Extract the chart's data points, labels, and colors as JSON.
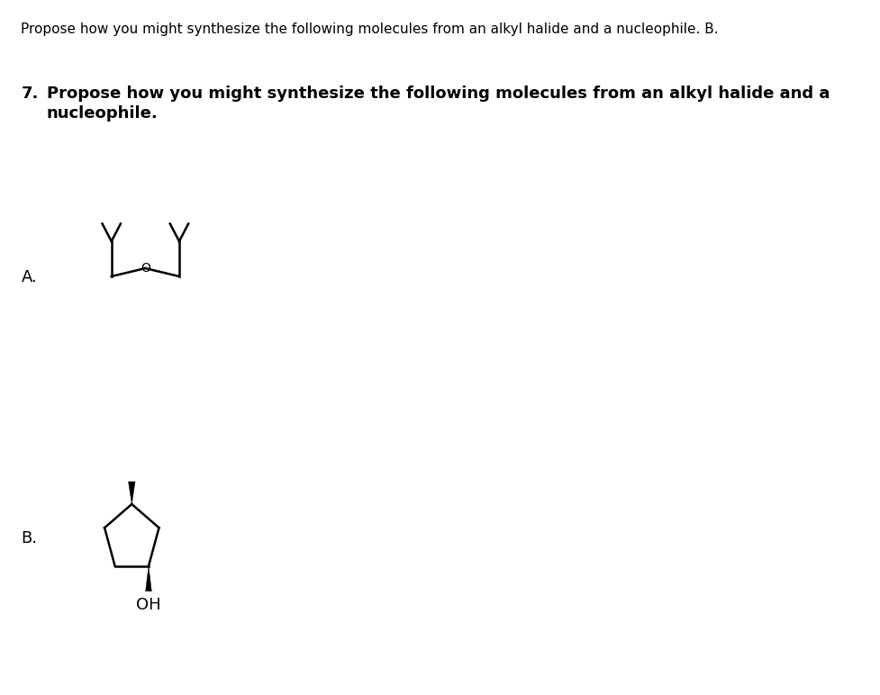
{
  "title_top": "Propose how you might synthesize the following molecules from an alkyl halide and a nucleophile. B.",
  "question_number": "7.",
  "question_bold_line1": "Propose how you might synthesize the following molecules from an alkyl halide and a",
  "question_bold_line2": "nucleophile.",
  "label_A": "A.",
  "label_B": "B.",
  "bg_color": "#ffffff",
  "text_color": "#000000",
  "line_color": "#000000",
  "molecule_A_O_label": "O",
  "molecule_B_OH_label": "OH",
  "title_fontsize": 11,
  "bold_fontsize": 13,
  "label_fontsize": 13
}
